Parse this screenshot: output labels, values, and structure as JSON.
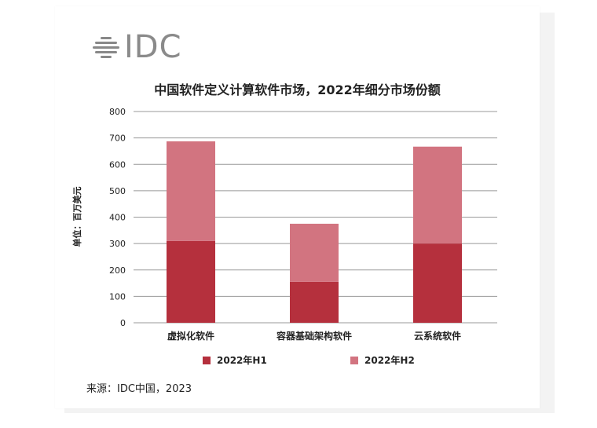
{
  "logo": {
    "text": "IDC",
    "icon": "idc-stripes-logo"
  },
  "footer": {
    "source": "来源：IDC中国，2023"
  },
  "colors": {
    "h1": "#b5303d",
    "h2": "#d27480",
    "grid": "#999999"
  },
  "chart_data": {
    "type": "bar",
    "stacked": true,
    "title": "中国软件定义计算软件市场，2022年细分市场份额",
    "ylabel": "单位：百万美元",
    "xlabel": "",
    "ylim": [
      0,
      800
    ],
    "yticks": [
      0,
      100,
      200,
      300,
      400,
      500,
      600,
      700,
      800
    ],
    "categories": [
      "虚拟化软件",
      "容器基础架构软件",
      "云系统软件"
    ],
    "series": [
      {
        "name": "2022年H1",
        "values": [
          310,
          155,
          300
        ]
      },
      {
        "name": "2022年H2",
        "values": [
          377,
          220,
          367
        ]
      }
    ],
    "grid": true,
    "legend_position": "bottom"
  }
}
